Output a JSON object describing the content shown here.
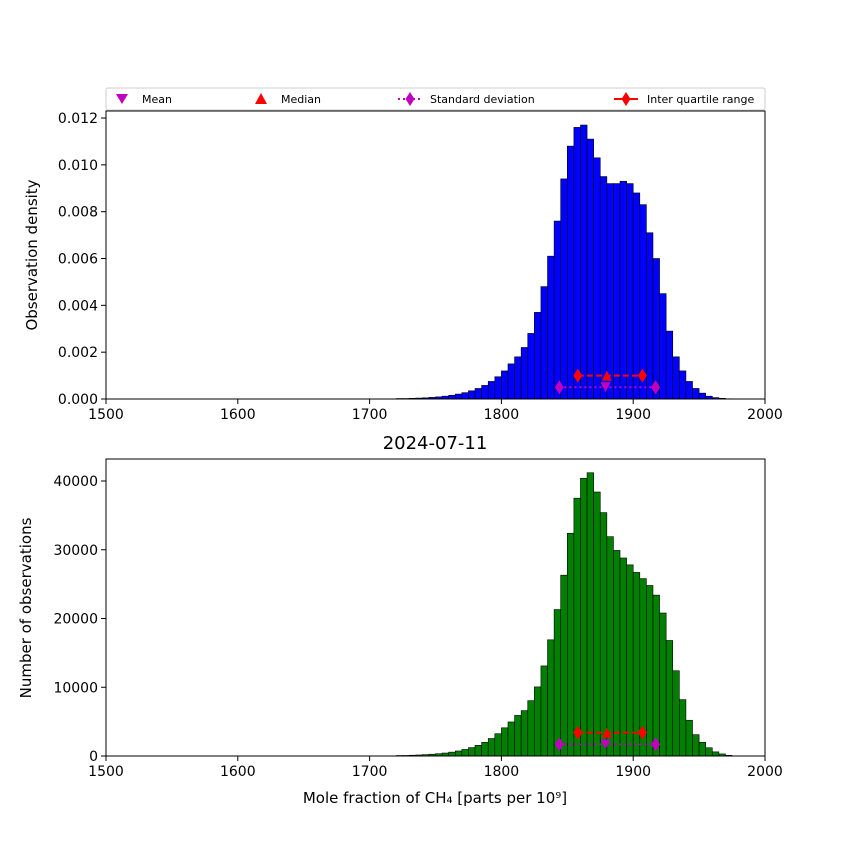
{
  "colors": {
    "top_bar": "#0000ff",
    "bottom_bar": "#008000",
    "mean": "#bf00bf",
    "median": "#ff0000",
    "std": "#bf00bf",
    "iqr": "#ff0000"
  },
  "legend": {
    "mean": "Mean",
    "median": "Median",
    "std": "Standard deviation",
    "iqr": "Inter quartile range"
  },
  "chart_data": [
    {
      "type": "bar",
      "title": "",
      "xlabel": "",
      "ylabel": "Observation density",
      "xlim": [
        1500,
        2000
      ],
      "ylim": [
        0,
        0.0123
      ],
      "xticks": [
        1500,
        1600,
        1700,
        1800,
        1900,
        2000
      ],
      "xtick_labels": [
        "1500",
        "1600",
        "1700",
        "1800",
        "1900",
        "2000"
      ],
      "yticks": [
        0,
        0.002,
        0.004,
        0.006,
        0.008,
        0.01,
        0.012
      ],
      "ytick_labels": [
        "0.000",
        "0.002",
        "0.004",
        "0.006",
        "0.008",
        "0.010",
        "0.012"
      ],
      "bin_start": 1720,
      "bin_width": 5,
      "values": [
        2e-05,
        2e-05,
        3e-05,
        4e-05,
        5e-05,
        7e-05,
        9e-05,
        0.00012,
        0.00016,
        0.00021,
        0.00027,
        0.00035,
        0.00045,
        0.00058,
        0.00075,
        0.00095,
        0.0012,
        0.0015,
        0.0018,
        0.0022,
        0.0028,
        0.0037,
        0.0048,
        0.0061,
        0.0076,
        0.0094,
        0.0108,
        0.0116,
        0.0117,
        0.0111,
        0.0103,
        0.0095,
        0.0092,
        0.0092,
        0.0093,
        0.0092,
        0.0088,
        0.0083,
        0.0071,
        0.006,
        0.0045,
        0.0029,
        0.0018,
        0.0012,
        0.00075,
        0.00045,
        0.00025,
        0.00012,
        6e-05,
        3e-05,
        1e-05
      ],
      "stats": {
        "mean": 1879,
        "median": 1880,
        "std_range": [
          1844,
          1917
        ],
        "iqr_range": [
          1858,
          1907
        ],
        "std_y": 0.0005,
        "median_iqr_y": 0.001
      }
    },
    {
      "type": "bar",
      "title": "2024-07-11",
      "xlabel": "Mole fraction of CH₄ [parts per 10⁹]",
      "ylabel": "Number of observations",
      "xlim": [
        1500,
        2000
      ],
      "ylim": [
        0,
        43200
      ],
      "xticks": [
        1500,
        1600,
        1700,
        1800,
        1900,
        2000
      ],
      "xtick_labels": [
        "1500",
        "1600",
        "1700",
        "1800",
        "1900",
        "2000"
      ],
      "yticks": [
        0,
        10000,
        20000,
        30000,
        40000
      ],
      "ytick_labels": [
        "0",
        "10000",
        "20000",
        "30000",
        "40000"
      ],
      "bin_start": 1720,
      "bin_width": 5,
      "values": [
        70,
        80,
        110,
        150,
        200,
        260,
        330,
        430,
        560,
        730,
        950,
        1220,
        1550,
        1980,
        2540,
        3240,
        4100,
        4950,
        5900,
        6600,
        8050,
        10050,
        13100,
        16900,
        21300,
        26300,
        32400,
        37500,
        40400,
        41200,
        38400,
        35400,
        31900,
        29900,
        28800,
        27800,
        26700,
        25800,
        24800,
        23400,
        20800,
        16800,
        12400,
        8200,
        5200,
        3100,
        2000,
        1200,
        600,
        300,
        100
      ],
      "stats": {
        "mean": 1879,
        "median": 1880,
        "std_range": [
          1844,
          1917
        ],
        "iqr_range": [
          1858,
          1907
        ],
        "std_y": 1700,
        "median_iqr_y": 3400
      }
    }
  ]
}
